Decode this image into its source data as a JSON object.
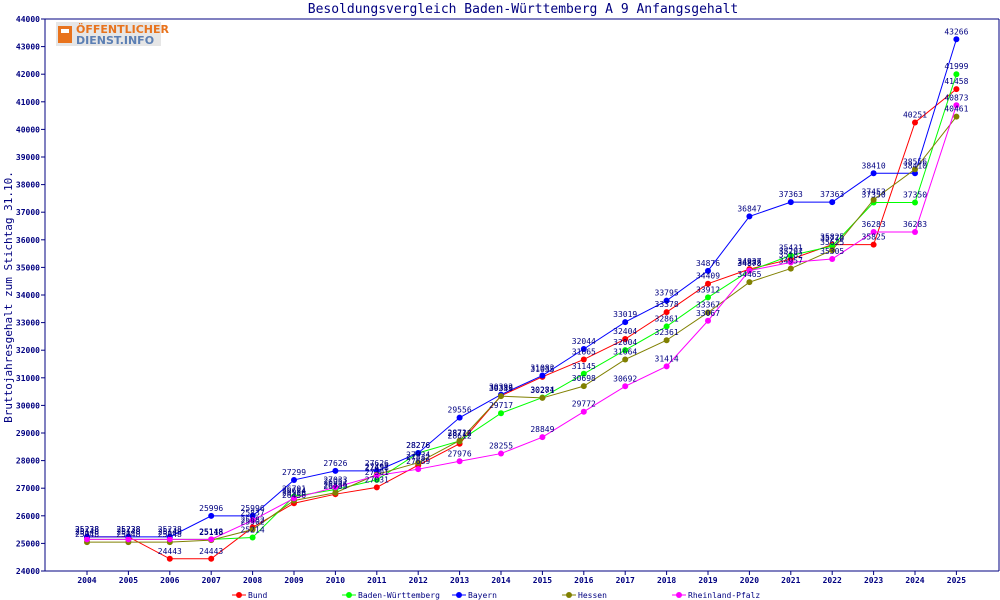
{
  "logo": {
    "line1": "ÖFFENTLICHER",
    "line2": "DIENST.INFO"
  },
  "chart_data": {
    "type": "line",
    "title": "Besoldungsvergleich Baden-Württemberg A 9 Anfangsgehalt",
    "xlabel": "",
    "ylabel": "Bruttojahresgehalt zum Stichtag 31.10.",
    "ylim": [
      24000,
      44000
    ],
    "yticks": [
      24000,
      25000,
      26000,
      27000,
      28000,
      29000,
      30000,
      31000,
      32000,
      33000,
      34000,
      35000,
      36000,
      37000,
      38000,
      39000,
      40000,
      41000,
      42000,
      43000,
      44000
    ],
    "categories": [
      "2004",
      "2005",
      "2006",
      "2007",
      "2008",
      "2009",
      "2010",
      "2011",
      "2012",
      "2013",
      "2014",
      "2015",
      "2016",
      "2017",
      "2018",
      "2019",
      "2020",
      "2021",
      "2022",
      "2023",
      "2024",
      "2025"
    ],
    "grid": false,
    "legend_position": "bottom",
    "series": [
      {
        "name": "Bund",
        "color": "#ff0000",
        "values": [
          25238,
          25238,
          24443,
          24443,
          25582,
          26456,
          26783,
          27031,
          27832,
          28612,
          30349,
          31035,
          31665,
          32404,
          33378,
          34409,
          34937,
          35297,
          35825,
          35825,
          40251,
          41458
        ]
      },
      {
        "name": "Baden-Württemberg",
        "color": "#00ff00",
        "values": [
          25148,
          25148,
          25148,
          25148,
          25214,
          26701,
          26951,
          27301,
          28276,
          28712,
          29717,
          30284,
          31145,
          32004,
          32861,
          33912,
          34878,
          35431,
          35770,
          37350,
          37350,
          41999
        ]
      },
      {
        "name": "Bayern",
        "color": "#0000ff",
        "values": [
          25238,
          25238,
          25238,
          25996,
          25996,
          27299,
          27626,
          27626,
          28276,
          29556,
          30392,
          31082,
          32044,
          33019,
          33795,
          34876,
          36847,
          37363,
          37363,
          38410,
          38410,
          43266
        ]
      },
      {
        "name": "Hessen",
        "color": "#808000",
        "values": [
          25048,
          25048,
          25048,
          25118,
          25502,
          26556,
          26836,
          27497,
          27924,
          28724,
          30335,
          30271,
          30698,
          31664,
          32361,
          33367,
          34465,
          34957,
          35625,
          37453,
          38556,
          40461
        ]
      },
      {
        "name": "Rheinland-Pfalz",
        "color": "#ff00ff",
        "values": [
          25148,
          25148,
          25148,
          25148,
          25837,
          26634,
          27033,
          27458,
          27689,
          27976,
          28255,
          28849,
          29772,
          30692,
          31414,
          33067,
          34885,
          35182,
          35305,
          36283,
          36283,
          40873
        ]
      }
    ]
  }
}
